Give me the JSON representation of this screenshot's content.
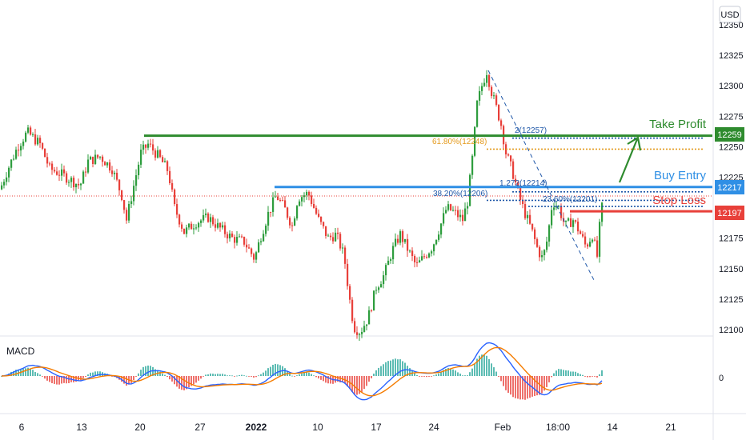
{
  "currency_label": "USD",
  "colors": {
    "up": "#26a69a",
    "candle_up": "#2e9d3e",
    "candle_down": "#e8403a",
    "take_profit": "#2e8b2e",
    "buy_entry": "#2f8fe5",
    "stop_loss": "#e8403a",
    "fib_orange": "#e49a1c",
    "fib_blue": "#1f57a8",
    "macd_line": "#2962ff",
    "signal_line": "#f57c00"
  },
  "chart_data": {
    "type": "candlestick",
    "title": "",
    "x_tick_labels": [
      "6",
      "13",
      "20",
      "27",
      "2022",
      "10",
      "17",
      "24",
      "Feb",
      "18:00",
      "14",
      "21"
    ],
    "y_tick_labels": [
      12350,
      12325,
      12300,
      12275,
      12250,
      12225,
      12175,
      12150,
      12125,
      12100
    ],
    "ylim": [
      12095,
      12360
    ],
    "levels": [
      {
        "name": "Take Profit",
        "value": 12259,
        "badge": "12259"
      },
      {
        "name": "Buy Entry",
        "value": 12217,
        "badge": "12217"
      },
      {
        "name": "Stop Loss",
        "value": 12197,
        "badge": "12197"
      }
    ],
    "fib_annotations": [
      {
        "label": "61.80%(12248)",
        "value": 12248
      },
      {
        "label": "38.20%(12206)",
        "value": 12206
      },
      {
        "label": "2(12257)",
        "value": 12257
      },
      {
        "label": "1.272(12214)",
        "value": 12214
      },
      {
        "label": "23.60%(12201)",
        "value": 12201
      }
    ],
    "macd": {
      "label": "MACD",
      "zero_label": "0"
    }
  }
}
